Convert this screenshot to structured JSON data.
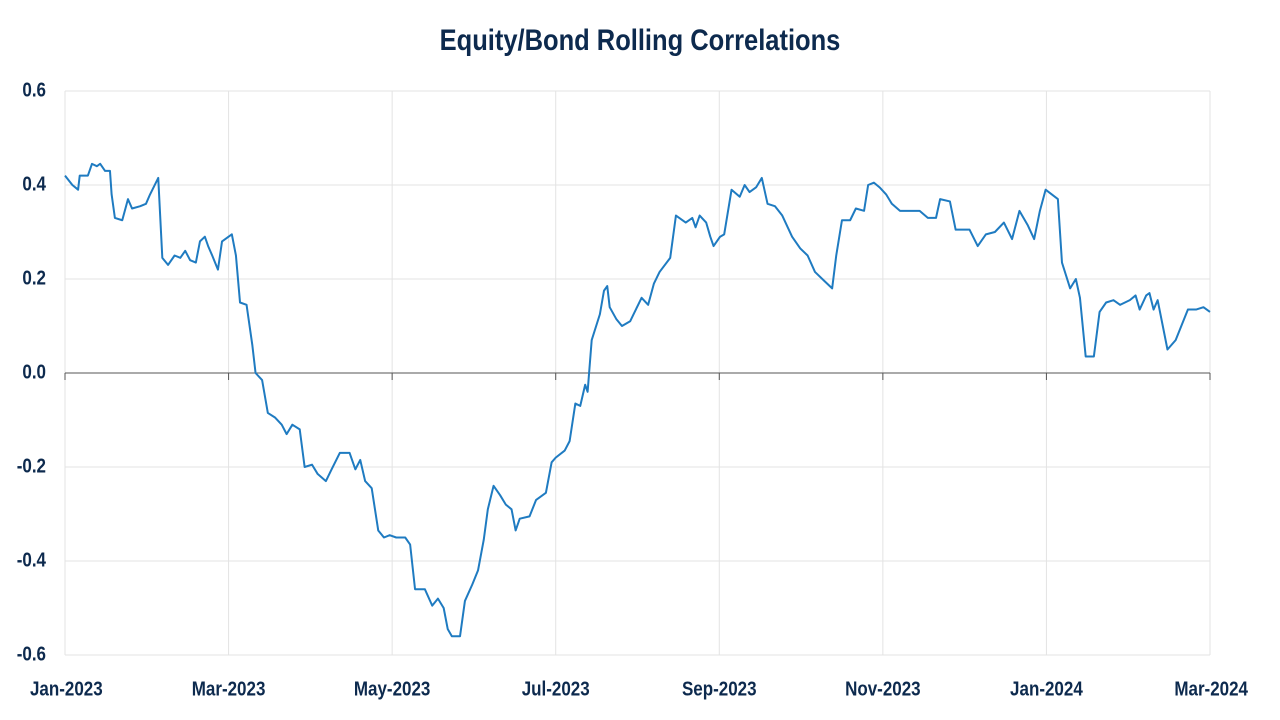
{
  "chart_data": {
    "type": "line",
    "title": "Equity/Bond Rolling Correlations",
    "color": "#1f7bc1",
    "grid": true,
    "xlim": [
      0,
      14
    ],
    "xticks": [
      {
        "value": 0,
        "label": "Jan-2023"
      },
      {
        "value": 2,
        "label": "Mar-2023"
      },
      {
        "value": 4,
        "label": "May-2023"
      },
      {
        "value": 6,
        "label": "Jul-2023"
      },
      {
        "value": 8,
        "label": "Sep-2023"
      },
      {
        "value": 10,
        "label": "Nov-2023"
      },
      {
        "value": 12,
        "label": "Jan-2024"
      },
      {
        "value": 14,
        "label": "Mar-2024"
      }
    ],
    "ylim": [
      -0.6,
      0.6
    ],
    "yticks": [
      -0.6,
      -0.4,
      -0.2,
      {
        "value": 0,
        "label": "0.0"
      },
      0.2,
      0.4,
      0.6
    ],
    "x": [
      0,
      0.09,
      0.16,
      0.18,
      0.28,
      0.33,
      0.39,
      0.43,
      0.49,
      0.55,
      0.57,
      0.61,
      0.7,
      0.77,
      0.82,
      0.92,
      0.99,
      1.04,
      1.14,
      1.19,
      1.26,
      1.34,
      1.41,
      1.47,
      1.53,
      1.6,
      1.65,
      1.71,
      1.75,
      1.8,
      1.87,
      1.92,
      2.04,
      2.09,
      2.14,
      2.22,
      2.29,
      2.33,
      2.41,
      2.48,
      2.57,
      2.65,
      2.71,
      2.78,
      2.87,
      2.93,
      3.02,
      3.09,
      3.19,
      3.26,
      3.36,
      3.48,
      3.55,
      3.61,
      3.67,
      3.75,
      3.83,
      3.9,
      3.97,
      4.05,
      4.16,
      4.22,
      4.28,
      4.4,
      4.49,
      4.56,
      4.63,
      4.68,
      4.73,
      4.83,
      4.89,
      4.98,
      5.05,
      5.12,
      5.17,
      5.24,
      5.32,
      5.39,
      5.46,
      5.51,
      5.56,
      5.68,
      5.76,
      5.88,
      5.95,
      6.0,
      6.11,
      6.17,
      6.24,
      6.3,
      6.36,
      6.39,
      6.44,
      6.54,
      6.59,
      6.63,
      6.66,
      6.74,
      6.81,
      6.91,
      6.98,
      7.05,
      7.13,
      7.2,
      7.27,
      7.4,
      7.47,
      7.59,
      7.67,
      7.71,
      7.76,
      7.84,
      7.89,
      7.93,
      8.01,
      8.06,
      8.15,
      8.25,
      8.31,
      8.37,
      8.45,
      8.52,
      8.59,
      8.68,
      8.77,
      8.89,
      8.99,
      9.08,
      9.17,
      9.29,
      9.38,
      9.43,
      9.5,
      9.6,
      9.67,
      9.77,
      9.82,
      9.89,
      9.96,
      10.04,
      10.11,
      10.21,
      10.28,
      10.35,
      10.45,
      10.55,
      10.65,
      10.7,
      10.82,
      10.89,
      11.06,
      11.16,
      11.26,
      11.37,
      11.48,
      11.58,
      11.67,
      11.77,
      11.85,
      11.92,
      11.99,
      12.14,
      12.19,
      12.29,
      12.36,
      12.41,
      12.48,
      12.58,
      12.65,
      12.73,
      12.82,
      12.9,
      13.02,
      13.09,
      13.14,
      13.22,
      13.26,
      13.31,
      13.36,
      13.48,
      13.58,
      13.73,
      13.83,
      13.92,
      14
    ],
    "values": [
      0.42,
      0.4,
      0.39,
      0.42,
      0.42,
      0.445,
      0.44,
      0.445,
      0.43,
      0.43,
      0.38,
      0.33,
      0.325,
      0.37,
      0.35,
      0.355,
      0.36,
      0.38,
      0.415,
      0.245,
      0.23,
      0.25,
      0.245,
      0.26,
      0.24,
      0.235,
      0.28,
      0.29,
      0.27,
      0.25,
      0.22,
      0.28,
      0.295,
      0.25,
      0.15,
      0.145,
      0.06,
      0,
      -0.015,
      -0.085,
      -0.095,
      -0.11,
      -0.13,
      -0.11,
      -0.12,
      -0.2,
      -0.195,
      -0.215,
      -0.23,
      -0.205,
      -0.17,
      -0.17,
      -0.205,
      -0.185,
      -0.23,
      -0.245,
      -0.335,
      -0.35,
      -0.345,
      -0.35,
      -0.35,
      -0.365,
      -0.46,
      -0.46,
      -0.495,
      -0.48,
      -0.5,
      -0.545,
      -0.56,
      -0.56,
      -0.485,
      -0.45,
      -0.42,
      -0.355,
      -0.29,
      -0.24,
      -0.26,
      -0.28,
      -0.29,
      -0.335,
      -0.31,
      -0.305,
      -0.27,
      -0.255,
      -0.19,
      -0.18,
      -0.165,
      -0.145,
      -0.065,
      -0.07,
      -0.025,
      -0.04,
      0.07,
      0.125,
      0.175,
      0.185,
      0.14,
      0.115,
      0.1,
      0.11,
      0.135,
      0.16,
      0.145,
      0.19,
      0.215,
      0.245,
      0.335,
      0.32,
      0.33,
      0.31,
      0.335,
      0.32,
      0.29,
      0.27,
      0.29,
      0.295,
      0.39,
      0.375,
      0.4,
      0.385,
      0.395,
      0.415,
      0.36,
      0.355,
      0.335,
      0.29,
      0.265,
      0.25,
      0.215,
      0.195,
      0.18,
      0.25,
      0.325,
      0.325,
      0.35,
      0.345,
      0.4,
      0.405,
      0.395,
      0.38,
      0.36,
      0.345,
      0.345,
      0.345,
      0.345,
      0.33,
      0.33,
      0.37,
      0.365,
      0.305,
      0.305,
      0.27,
      0.295,
      0.3,
      0.32,
      0.285,
      0.345,
      0.315,
      0.285,
      0.345,
      0.39,
      0.37,
      0.235,
      0.18,
      0.2,
      0.16,
      0.035,
      0.035,
      0.13,
      0.15,
      0.155,
      0.145,
      0.155,
      0.165,
      0.135,
      0.165,
      0.17,
      0.135,
      0.155,
      0.05,
      0.07,
      0.135,
      0.135,
      0.14,
      0.13
    ]
  }
}
